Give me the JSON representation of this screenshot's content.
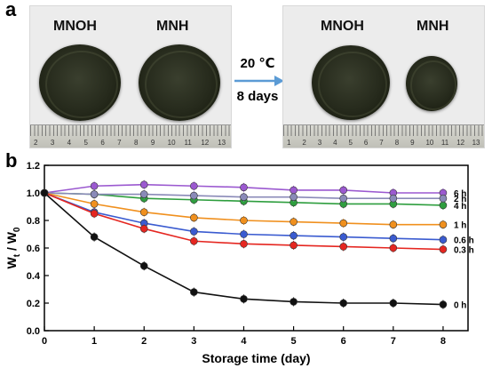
{
  "panel_a": {
    "letter": "a",
    "before": {
      "label_left": "MNOH",
      "label_right": "MNH",
      "ruler_numbers": [
        "2",
        "3",
        "4",
        "5",
        "6",
        "7",
        "8",
        "9",
        "10",
        "11",
        "12",
        "13"
      ]
    },
    "after": {
      "label_left": "MNOH",
      "label_right": "MNH",
      "ruler_numbers": [
        "1",
        "2",
        "3",
        "4",
        "5",
        "6",
        "7",
        "8",
        "9",
        "10",
        "11",
        "12",
        "13"
      ]
    },
    "condition_temp": "20 ℃",
    "condition_time": "8 days",
    "arrow_color": "#5b9bd5"
  },
  "panel_b": {
    "letter": "b",
    "chart_data": {
      "type": "line",
      "xlabel": "Storage time (day)",
      "ylabel_main": "W",
      "ylabel_sub1": "t",
      "ylabel_mid": " / W",
      "ylabel_sub2": "0",
      "x": [
        0,
        1,
        2,
        3,
        4,
        5,
        6,
        7,
        8
      ],
      "xlim": [
        0,
        8.5
      ],
      "ylim": [
        0,
        1.2
      ],
      "xticks": [
        "0",
        "1",
        "2",
        "3",
        "4",
        "5",
        "6",
        "7",
        "8"
      ],
      "yticks": [
        "0.0",
        "0.2",
        "0.4",
        "0.6",
        "0.8",
        "1.0",
        "1.2"
      ],
      "series": [
        {
          "name": "6 h",
          "color": "#9b59d0",
          "values": [
            1.0,
            1.05,
            1.06,
            1.05,
            1.04,
            1.02,
            1.02,
            1.0,
            1.0
          ]
        },
        {
          "name": "4 h",
          "color": "#2e9e3e",
          "values": [
            1.0,
            0.99,
            0.96,
            0.95,
            0.94,
            0.93,
            0.92,
            0.92,
            0.91
          ]
        },
        {
          "name": "2 h",
          "color": "#8a8ab8",
          "values": [
            1.0,
            0.99,
            0.99,
            0.98,
            0.97,
            0.97,
            0.96,
            0.96,
            0.96
          ]
        },
        {
          "name": "1 h",
          "color": "#f0901e",
          "values": [
            1.0,
            0.92,
            0.86,
            0.82,
            0.8,
            0.79,
            0.78,
            0.77,
            0.77
          ]
        },
        {
          "name": "0.6 h",
          "color": "#3a5bd0",
          "values": [
            1.0,
            0.86,
            0.78,
            0.72,
            0.7,
            0.69,
            0.68,
            0.67,
            0.66
          ]
        },
        {
          "name": "0.3 h",
          "color": "#e52620",
          "values": [
            1.0,
            0.85,
            0.74,
            0.65,
            0.63,
            0.62,
            0.61,
            0.6,
            0.59
          ]
        },
        {
          "name": "0 h",
          "color": "#111111",
          "values": [
            1.0,
            0.68,
            0.47,
            0.28,
            0.23,
            0.21,
            0.2,
            0.2,
            0.19
          ]
        }
      ]
    }
  }
}
